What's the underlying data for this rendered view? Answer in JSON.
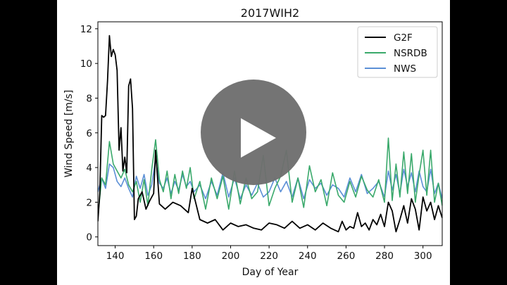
{
  "colors": {
    "G2F": "#000000",
    "NSRDB": "#3aa96b",
    "NWS": "#5b8fd6",
    "play_overlay": "#6e6e6e",
    "play_icon": "#ffffff"
  },
  "video": {
    "play_icon": "play-triangle"
  },
  "chart_data": {
    "type": "line",
    "title": "2017WIH2",
    "xlabel": "Day of Year",
    "ylabel": "Wind Speed [m/s]",
    "xlim": [
      131,
      310
    ],
    "ylim": [
      -0.5,
      12.4
    ],
    "xticks": [
      140,
      160,
      180,
      200,
      220,
      240,
      260,
      280,
      300
    ],
    "yticks": [
      0,
      2,
      4,
      6,
      8,
      10,
      12
    ],
    "grid": false,
    "legend_position": "top-right",
    "series": [
      {
        "name": "G2F",
        "x": [
          131,
          132,
          133,
          134,
          135,
          136,
          137,
          138,
          139,
          140,
          141,
          142,
          143,
          144,
          145,
          146,
          147,
          148,
          149,
          150,
          151,
          152,
          154,
          156,
          158,
          160,
          161,
          163,
          166,
          170,
          174,
          178,
          180,
          184,
          188,
          192,
          196,
          200,
          204,
          208,
          212,
          216,
          220,
          224,
          228,
          232,
          236,
          240,
          244,
          248,
          252,
          256,
          258,
          260,
          262,
          264,
          266,
          268,
          270,
          272,
          274,
          276,
          278,
          280,
          282,
          284,
          286,
          288,
          290,
          292,
          294,
          296,
          298,
          300,
          302,
          304,
          306,
          308,
          310
        ],
        "values": [
          0.9,
          2.5,
          7.0,
          6.9,
          7.0,
          9.0,
          11.6,
          10.4,
          10.8,
          10.5,
          9.6,
          5.0,
          6.3,
          3.8,
          4.6,
          3.7,
          8.7,
          9.1,
          7.4,
          1.0,
          1.2,
          2.2,
          2.6,
          1.6,
          2.1,
          2.5,
          5.0,
          1.9,
          1.6,
          2.0,
          1.8,
          1.4,
          2.8,
          1.0,
          0.8,
          1.0,
          0.4,
          0.8,
          0.6,
          0.7,
          0.5,
          0.4,
          0.8,
          0.7,
          0.5,
          0.9,
          0.5,
          0.7,
          0.4,
          0.8,
          0.5,
          0.3,
          0.9,
          0.4,
          0.6,
          0.5,
          1.4,
          0.6,
          0.8,
          0.4,
          1.0,
          0.7,
          1.3,
          0.6,
          2.0,
          1.5,
          0.3,
          1.0,
          1.8,
          0.8,
          2.2,
          1.6,
          0.4,
          2.3,
          1.5,
          2.0,
          1.0,
          1.8,
          1.1
        ]
      },
      {
        "name": "NSRDB",
        "x": [
          131,
          133,
          135,
          137,
          139,
          141,
          143,
          145,
          147,
          149,
          151,
          153,
          155,
          157,
          159,
          161,
          163,
          165,
          167,
          169,
          171,
          173,
          175,
          177,
          179,
          181,
          184,
          187,
          190,
          193,
          196,
          199,
          202,
          205,
          208,
          211,
          214,
          217,
          220,
          223,
          226,
          229,
          232,
          235,
          238,
          241,
          244,
          247,
          250,
          253,
          256,
          259,
          262,
          265,
          268,
          271,
          274,
          277,
          280,
          282,
          284,
          286,
          288,
          290,
          292,
          294,
          296,
          298,
          300,
          302,
          304,
          306,
          308,
          310
        ],
        "values": [
          1.2,
          3.4,
          3.0,
          5.5,
          4.2,
          3.8,
          3.4,
          3.9,
          3.0,
          2.6,
          3.2,
          2.0,
          3.3,
          1.8,
          3.9,
          5.6,
          3.3,
          2.6,
          3.8,
          2.2,
          3.6,
          2.5,
          3.8,
          2.8,
          4.0,
          2.2,
          3.2,
          1.6,
          3.4,
          2.2,
          3.5,
          1.6,
          3.8,
          1.9,
          3.4,
          2.2,
          2.6,
          4.7,
          1.8,
          2.8,
          3.5,
          5.0,
          2.0,
          3.4,
          1.7,
          4.1,
          2.6,
          3.3,
          1.8,
          3.7,
          2.4,
          2.0,
          3.2,
          2.3,
          3.5,
          2.7,
          2.3,
          3.3,
          2.0,
          5.7,
          2.1,
          4.2,
          2.3,
          4.9,
          2.5,
          4.8,
          2.0,
          3.6,
          5.0,
          2.4,
          5.0,
          2.0,
          3.1,
          1.8
        ]
      },
      {
        "name": "NWS",
        "x": [
          131,
          133,
          135,
          137,
          139,
          141,
          143,
          145,
          147,
          149,
          151,
          153,
          155,
          157,
          159,
          161,
          163,
          165,
          167,
          169,
          171,
          173,
          175,
          177,
          179,
          181,
          184,
          187,
          190,
          193,
          196,
          199,
          202,
          205,
          208,
          211,
          214,
          217,
          220,
          223,
          226,
          229,
          232,
          235,
          238,
          241,
          244,
          247,
          250,
          253,
          256,
          259,
          262,
          265,
          268,
          271,
          274,
          277,
          280,
          282,
          284,
          286,
          288,
          290,
          292,
          294,
          296,
          298,
          300,
          302,
          304,
          306,
          308,
          310
        ],
        "values": [
          2.6,
          3.4,
          2.8,
          4.2,
          4.0,
          3.2,
          2.9,
          3.4,
          2.8,
          2.3,
          3.5,
          2.8,
          3.6,
          2.4,
          3.0,
          4.5,
          3.1,
          2.8,
          3.4,
          2.5,
          3.2,
          2.7,
          3.6,
          2.9,
          3.2,
          2.6,
          3.0,
          2.2,
          3.2,
          2.4,
          3.7,
          2.3,
          3.4,
          2.2,
          3.0,
          2.4,
          3.1,
          2.3,
          2.6,
          3.4,
          2.6,
          3.2,
          2.3,
          3.4,
          2.2,
          3.3,
          2.8,
          3.1,
          2.4,
          3.0,
          2.8,
          2.3,
          3.4,
          2.6,
          3.6,
          2.5,
          2.8,
          3.2,
          2.3,
          3.8,
          2.7,
          3.6,
          2.5,
          3.9,
          2.9,
          3.7,
          2.6,
          3.8,
          2.9,
          2.6,
          3.9,
          2.5,
          3.1,
          2.2
        ]
      }
    ]
  }
}
